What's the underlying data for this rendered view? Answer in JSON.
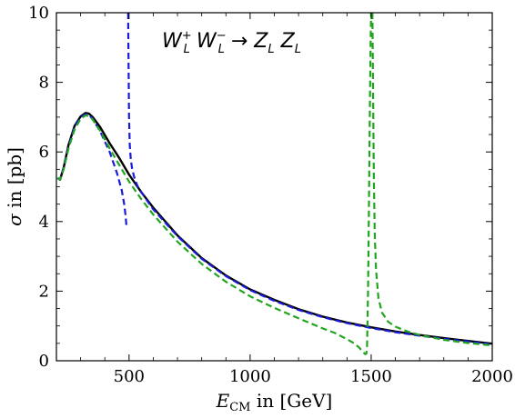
{
  "chart_data": {
    "type": "line",
    "title": {
      "parts": [
        {
          "base": "W",
          "sub": "L",
          "sup": "+"
        },
        {
          "base": "W",
          "sub": "L",
          "sup": "−"
        },
        {
          "base": "→"
        },
        {
          "base": "Z",
          "sub": "L"
        },
        {
          "base": "Z",
          "sub": "L"
        }
      ]
    },
    "xlabel": {
      "base": "E",
      "sub": "CM",
      "rest": " in [GeV]"
    },
    "ylabel": {
      "symbol": "σ",
      "rest": " in [pb]"
    },
    "xlim": [
      200,
      2000
    ],
    "ylim": [
      0,
      10
    ],
    "xticks": [
      500,
      1000,
      1500,
      2000
    ],
    "yticks": [
      0,
      2,
      4,
      6,
      8,
      10
    ],
    "grid": false,
    "colors": {
      "black": "#000000",
      "blue": "#1a1adc",
      "green": "#22a51e",
      "axis": "#000000"
    },
    "series": [
      {
        "color": "black",
        "style": "solid",
        "x": [
          205,
          215,
          230,
          250,
          275,
          300,
          320,
          335,
          350,
          380,
          420,
          460,
          500,
          550,
          600,
          700,
          800,
          900,
          1000,
          1100,
          1200,
          1300,
          1400,
          1500,
          1600,
          1700,
          1800,
          1900,
          2000
        ],
        "y": [
          5.25,
          5.2,
          5.55,
          6.2,
          6.75,
          7.02,
          7.12,
          7.1,
          7.0,
          6.72,
          6.25,
          5.82,
          5.35,
          4.85,
          4.4,
          3.6,
          2.95,
          2.45,
          2.05,
          1.75,
          1.48,
          1.27,
          1.1,
          0.96,
          0.84,
          0.74,
          0.65,
          0.57,
          0.49
        ]
      },
      {
        "color": "blue",
        "style": "dashed",
        "x": [
          205,
          215,
          230,
          250,
          275,
          300,
          320,
          335,
          350,
          380,
          420,
          450,
          470,
          480,
          486,
          490
        ],
        "y": [
          5.25,
          5.2,
          5.55,
          6.15,
          6.72,
          7.0,
          7.08,
          7.06,
          6.95,
          6.6,
          6.0,
          5.4,
          4.9,
          4.5,
          4.15,
          3.8
        ]
      },
      {
        "color": "blue",
        "style": "dashed",
        "x": [
          496,
          498,
          500,
          503,
          507,
          512,
          520,
          535,
          550,
          600,
          700,
          800,
          900,
          1000,
          1100,
          1200,
          1300,
          1400,
          1500,
          1600,
          1700,
          1800,
          1900,
          2000
        ],
        "y": [
          10.0,
          8.5,
          7.0,
          6.2,
          5.8,
          5.55,
          5.3,
          5.02,
          4.85,
          4.35,
          3.58,
          2.93,
          2.43,
          2.03,
          1.72,
          1.46,
          1.25,
          1.08,
          0.94,
          0.82,
          0.72,
          0.63,
          0.55,
          0.47
        ]
      },
      {
        "color": "green",
        "style": "dashed",
        "x": [
          205,
          215,
          230,
          250,
          275,
          300,
          320,
          335,
          350,
          380,
          420,
          460,
          500,
          550,
          600,
          700,
          800,
          900,
          1000,
          1100,
          1200,
          1300,
          1350,
          1400,
          1430,
          1450,
          1465,
          1475,
          1480,
          1483
        ],
        "y": [
          5.25,
          5.2,
          5.5,
          6.1,
          6.65,
          6.95,
          7.05,
          7.03,
          6.93,
          6.62,
          6.1,
          5.62,
          5.15,
          4.65,
          4.2,
          3.42,
          2.78,
          2.27,
          1.85,
          1.52,
          1.22,
          0.93,
          0.8,
          0.62,
          0.5,
          0.38,
          0.26,
          0.19,
          0.2,
          0.4
        ]
      },
      {
        "color": "green",
        "style": "dashed",
        "x": [
          1483,
          1487,
          1491,
          1495,
          1498,
          1500
        ],
        "y": [
          0.4,
          2.0,
          4.5,
          7.5,
          9.3,
          10.0
        ]
      },
      {
        "color": "green",
        "style": "dashed",
        "x": [
          1505,
          1508,
          1511,
          1515,
          1520,
          1530,
          1545,
          1570,
          1600,
          1650,
          1700,
          1800,
          1900,
          2000
        ],
        "y": [
          10.0,
          7.5,
          5.2,
          3.6,
          2.6,
          1.8,
          1.38,
          1.12,
          0.98,
          0.84,
          0.74,
          0.6,
          0.51,
          0.44
        ]
      }
    ]
  }
}
